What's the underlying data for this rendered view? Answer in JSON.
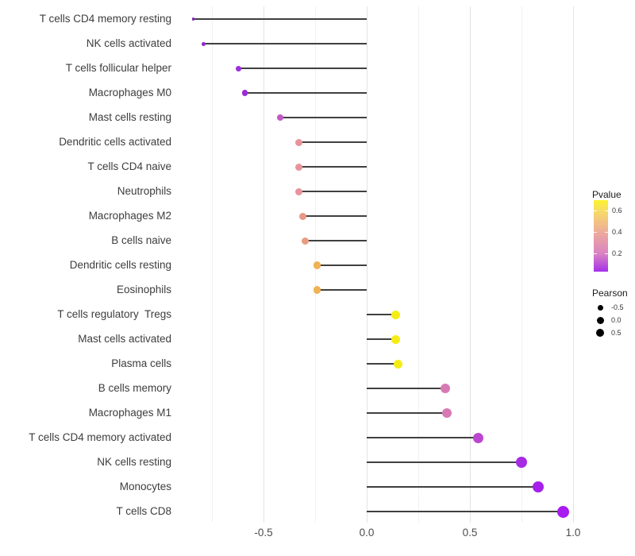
{
  "chart_data": {
    "type": "scatter",
    "subtype": "lollipop",
    "title": "",
    "xlabel": "",
    "ylabel": "",
    "grid": "vertical, every 0.25",
    "legend_position": "right",
    "x_ticks": [
      -0.5,
      0.0,
      0.5,
      1.0
    ],
    "x_tick_labels": [
      "-0.5",
      "0.0",
      "0.5",
      "1.0"
    ],
    "xlim": [
      -0.92,
      1.03
    ],
    "baseline": 0.0,
    "rows": [
      {
        "label": "T cells CD4 memory resting",
        "pearson": -0.84,
        "color": "#8326C4",
        "size": 3.5
      },
      {
        "label": "NK cells activated",
        "pearson": -0.79,
        "color": "#9128D2",
        "size": 5
      },
      {
        "label": "T cells follicular helper",
        "pearson": -0.62,
        "color": "#9C31DB",
        "size": 7
      },
      {
        "label": "Macrophages M0",
        "pearson": -0.59,
        "color": "#9A2BD7",
        "size": 7.5
      },
      {
        "label": "Mast cells resting",
        "pearson": -0.42,
        "color": "#C258C5",
        "size": 8
      },
      {
        "label": "Dendritic cells activated",
        "pearson": -0.33,
        "color": "#E8939B",
        "size": 9
      },
      {
        "label": "T cells CD4 naive",
        "pearson": -0.33,
        "color": "#E8939B",
        "size": 9
      },
      {
        "label": "Neutrophils",
        "pearson": -0.33,
        "color": "#E8939B",
        "size": 9
      },
      {
        "label": "Macrophages M2",
        "pearson": -0.31,
        "color": "#E89784",
        "size": 9
      },
      {
        "label": "B cells naive",
        "pearson": -0.3,
        "color": "#E99C82",
        "size": 9
      },
      {
        "label": "Dendritic cells resting",
        "pearson": -0.24,
        "color": "#EFB254",
        "size": 9.5
      },
      {
        "label": "Eosinophils",
        "pearson": -0.24,
        "color": "#EFB254",
        "size": 9.5
      },
      {
        "label": "T cells regulatory  Tregs",
        "pearson": 0.14,
        "color": "#F5EC15",
        "size": 11
      },
      {
        "label": "Mast cells activated",
        "pearson": 0.14,
        "color": "#F5EC15",
        "size": 11
      },
      {
        "label": "Plasma cells",
        "pearson": 0.15,
        "color": "#F5EC15",
        "size": 11
      },
      {
        "label": "B cells memory",
        "pearson": 0.38,
        "color": "#D77AB3",
        "size": 12
      },
      {
        "label": "Macrophages M1",
        "pearson": 0.39,
        "color": "#D77AB3",
        "size": 12
      },
      {
        "label": "T cells CD4 memory activated",
        "pearson": 0.54,
        "color": "#BC46D2",
        "size": 13
      },
      {
        "label": "NK cells resting",
        "pearson": 0.75,
        "color": "#A62BE2",
        "size": 14
      },
      {
        "label": "Monocytes",
        "pearson": 0.83,
        "color": "#A521E9",
        "size": 14
      },
      {
        "label": "T cells CD8",
        "pearson": 0.95,
        "color": "#A81CF0",
        "size": 15
      }
    ],
    "legend": {
      "pvalue": {
        "title": "Pvalue",
        "range": [
          0.03,
          0.7
        ],
        "ticks": [
          0.6,
          0.4,
          0.2
        ],
        "tick_labels": [
          "0.6",
          "0.4",
          "0.2"
        ],
        "gradient_bottom_to_top": [
          {
            "color": "#A631E9",
            "pos": 0
          },
          {
            "color": "#D983C3",
            "pos": 25
          },
          {
            "color": "#EDAB9B",
            "pos": 55
          },
          {
            "color": "#F7DC66",
            "pos": 85
          },
          {
            "color": "#FBF32B",
            "pos": 100
          }
        ]
      },
      "pearson": {
        "title": "Pearson",
        "items": [
          {
            "label": "-0.5",
            "size": 7
          },
          {
            "label": "0.0",
            "size": 9
          },
          {
            "label": "0.5",
            "size": 10
          }
        ]
      }
    }
  }
}
